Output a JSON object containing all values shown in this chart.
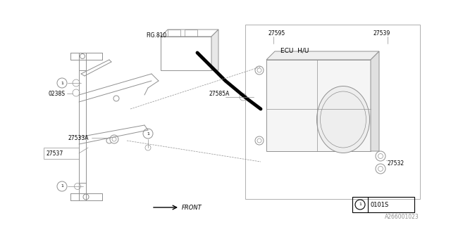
{
  "bg_color": "#ffffff",
  "line_color": "#909090",
  "dark_line": "#000000",
  "thin_line": "#aaaaaa",
  "title": "A266001023",
  "labels": {
    "fig810": "FIG.810",
    "part_27595": "27595",
    "part_27539": "27539",
    "part_27585A": "27585A",
    "ecu_hu": "ECU  H/U",
    "part_27533A": "27533A",
    "part_27537": "27537",
    "part_0238S": "0238S",
    "part_27532": "27532",
    "front": "FRONT",
    "legend_num": "0101S",
    "diagram_num": "A266001023"
  }
}
